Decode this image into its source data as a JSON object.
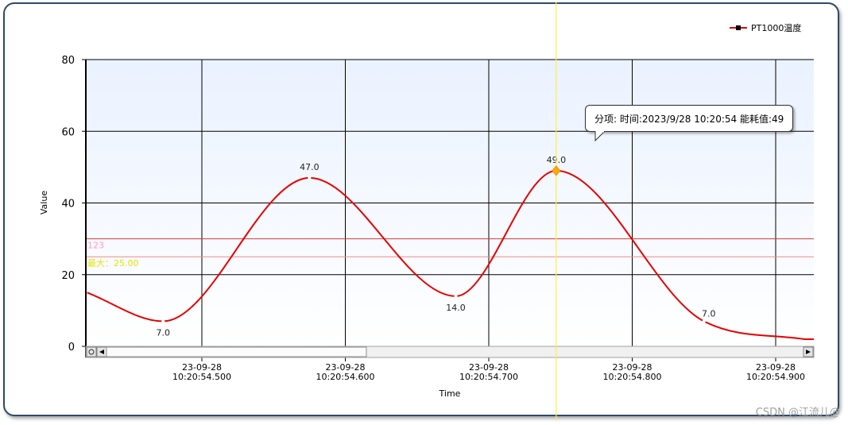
{
  "watermark": "CSDN @江流儿@",
  "tooltip": {
    "text": "分项:  时间:2023/9/28 10:20:54  能耗值:49"
  },
  "colors": {
    "series": "#e60000",
    "cursor": "#ffee44",
    "plot_bg_top": "#eaf2ff",
    "plot_bg_bottom": "#ffffff",
    "line_123": "#d23a3a",
    "line_max": "#ef8a8a",
    "label_123": "#ff99cc",
    "label_max": "#e6e600",
    "point_marker": "#ffaa00"
  },
  "chart_data": {
    "type": "line",
    "xlabel": "Time",
    "ylabel": "Value",
    "ylim": [
      0,
      80
    ],
    "yticks": [
      0,
      20,
      40,
      60,
      80
    ],
    "grid": true,
    "legend_position": "top-right",
    "x_ticks": [
      {
        "date": "23-09-28",
        "time": "10:20:54.500"
      },
      {
        "date": "23-09-28",
        "time": "10:20:54.600"
      },
      {
        "date": "23-09-28",
        "time": "10:20:54.700"
      },
      {
        "date": "23-09-28",
        "time": "10:20:54.800"
      },
      {
        "date": "23-09-28",
        "time": "10:20:54.900"
      }
    ],
    "series": [
      {
        "name": "PT1000温度",
        "x": [
          "10:20:54.420",
          "10:20:54.473",
          "10:20:54.575",
          "10:20:54.677",
          "10:20:54.747",
          "10:20:54.850",
          "10:20:54.920"
        ],
        "y": [
          15,
          7,
          47,
          14,
          49,
          7,
          2
        ],
        "labeled_points": [
          {
            "index": 1,
            "label": "7.0"
          },
          {
            "index": 2,
            "label": "47.0"
          },
          {
            "index": 3,
            "label": "14.0"
          },
          {
            "index": 4,
            "label": "49.0"
          },
          {
            "index": 5,
            "label": "7.0"
          }
        ]
      }
    ],
    "reference_lines": [
      {
        "label": "123",
        "value": 30
      },
      {
        "label": "最大：25.00",
        "value": 25
      }
    ],
    "cursor": {
      "x": "10:20:54.747",
      "y": 49
    }
  }
}
